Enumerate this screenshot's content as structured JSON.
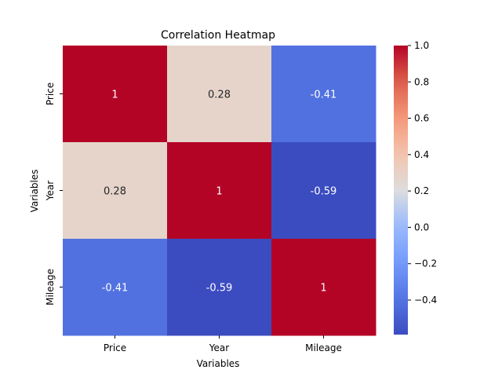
{
  "chart_data": {
    "type": "heatmap",
    "title": "Correlation Heatmap",
    "xlabel": "Variables",
    "ylabel": "Variables",
    "x_categories": [
      "Price",
      "Year",
      "Mileage"
    ],
    "y_categories": [
      "Price",
      "Year",
      "Mileage"
    ],
    "values": [
      [
        1,
        0.28,
        -0.41
      ],
      [
        0.28,
        1,
        -0.59
      ],
      [
        -0.41,
        -0.59,
        1
      ]
    ],
    "annotation_labels": [
      [
        "1",
        "0.28",
        "-0.41"
      ],
      [
        "0.28",
        "1",
        "-0.59"
      ],
      [
        "-0.41",
        "-0.59",
        "1"
      ]
    ],
    "colormap": "coolwarm",
    "colorbar": {
      "vmin": -0.59,
      "vmax": 1.0,
      "ticks": [
        -0.4,
        -0.2,
        0.0,
        0.2,
        0.4,
        0.6,
        0.8,
        1.0
      ],
      "tick_labels": [
        "−0.4",
        "−0.2",
        "0.0",
        "0.2",
        "0.4",
        "0.6",
        "0.8",
        "1.0"
      ]
    },
    "grid": false
  }
}
